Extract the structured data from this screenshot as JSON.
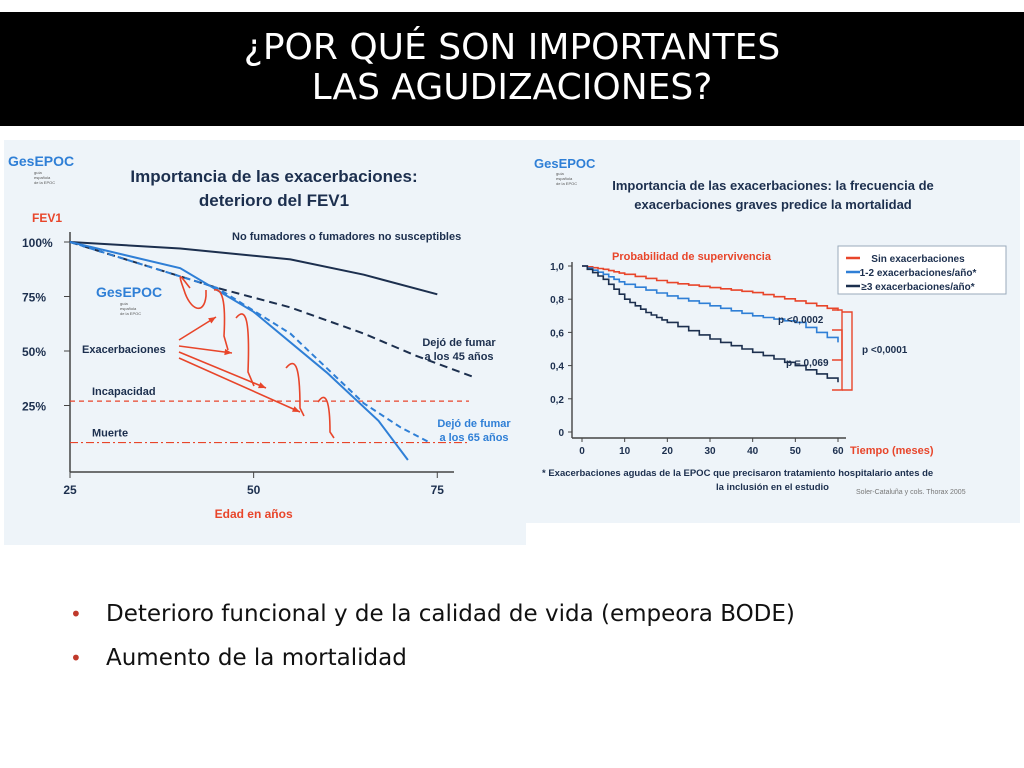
{
  "slide": {
    "title_line1": "¿POR QUÉ SON IMPORTANTES",
    "title_line2": "LAS AGUDIZACIONES?",
    "bullets": [
      "Deterioro funcional y de la calidad de vida (empeora BODE)",
      "Aumento de la mortalidad"
    ]
  },
  "logo": {
    "text": "GesEPOC",
    "sub": [
      "guía",
      "española",
      "de la EPOC"
    ]
  },
  "colors": {
    "red": "#e8452a",
    "blue": "#2f7fd6",
    "navy": "#1c2f4e",
    "orange": "#e8452a",
    "title_bg": "#000000"
  },
  "chart_data": [
    {
      "type": "line",
      "title": "Importancia de las exacerbaciones: deterioro del  FEV1",
      "ylabel": "FEV1",
      "xlabel": "Edad en años",
      "x_ticks": [
        "25",
        "50",
        "75"
      ],
      "y_ticks": [
        "100%",
        "75%",
        "50%",
        "25%"
      ],
      "xlim": [
        25,
        80
      ],
      "ylim": [
        0,
        100
      ],
      "series": [
        {
          "name": "No fumadores o fumadores no susceptibles",
          "x": [
            25,
            40,
            55,
            65,
            75
          ],
          "y": [
            100,
            97,
            92,
            85,
            76
          ]
        },
        {
          "name": "Dejó de fumar a los 45 años",
          "x": [
            25,
            45,
            55,
            65,
            72,
            80
          ],
          "y": [
            100,
            79,
            70,
            58,
            48,
            38
          ]
        },
        {
          "name": "Dejó de fumar a los 65 años",
          "x": [
            25,
            45,
            55,
            65,
            70,
            74
          ],
          "y": [
            100,
            79,
            58,
            26,
            15,
            8
          ]
        },
        {
          "name": "",
          "x": [
            25,
            40,
            50,
            60,
            67,
            71
          ],
          "y": [
            100,
            88,
            68,
            40,
            18,
            0
          ]
        }
      ],
      "reference_lines": [
        {
          "label": "Incapacidad",
          "y": 27
        },
        {
          "label": "Muerte",
          "y": 8
        }
      ],
      "annotations": [
        "Exacerbaciones"
      ]
    },
    {
      "type": "line",
      "title": "Importancia de las exacerbaciones: la frecuencia de exacerbaciones graves predice la mortalidad",
      "subtitle": "Probabilidad de supervivencia",
      "xlabel": "Tiempo (meses)",
      "x_ticks": [
        "0",
        "10",
        "20",
        "30",
        "40",
        "50",
        "60"
      ],
      "y_ticks": [
        "1,0",
        "0,8",
        "0,6",
        "0,4",
        "0,2",
        "0"
      ],
      "xlim": [
        0,
        60
      ],
      "ylim": [
        0,
        1
      ],
      "series": [
        {
          "name": "Sin exacerbaciones",
          "x": [
            0,
            5,
            10,
            20,
            30,
            40,
            50,
            60
          ],
          "y": [
            1.0,
            0.98,
            0.95,
            0.9,
            0.87,
            0.84,
            0.79,
            0.73
          ]
        },
        {
          "name": "1-2 exacerbaciones/año*",
          "x": [
            0,
            5,
            10,
            20,
            30,
            40,
            50,
            60
          ],
          "y": [
            1.0,
            0.95,
            0.89,
            0.82,
            0.76,
            0.7,
            0.66,
            0.54
          ]
        },
        {
          "name": "≥3 exacerbaciones/año*",
          "x": [
            0,
            5,
            10,
            15,
            20,
            30,
            40,
            50,
            60
          ],
          "y": [
            1.0,
            0.92,
            0.8,
            0.72,
            0.66,
            0.56,
            0.48,
            0.4,
            0.3
          ]
        }
      ],
      "p_values": [
        "p <0,0002",
        "p = 0,069",
        "p <0,0001"
      ],
      "footnote": "* Exacerbaciones agudas de la EPOC que precisaron tratamiento hospitalario antes de la inclusión en el estudio",
      "source": "Soler-Cataluña y cols. Thorax 2005"
    }
  ]
}
